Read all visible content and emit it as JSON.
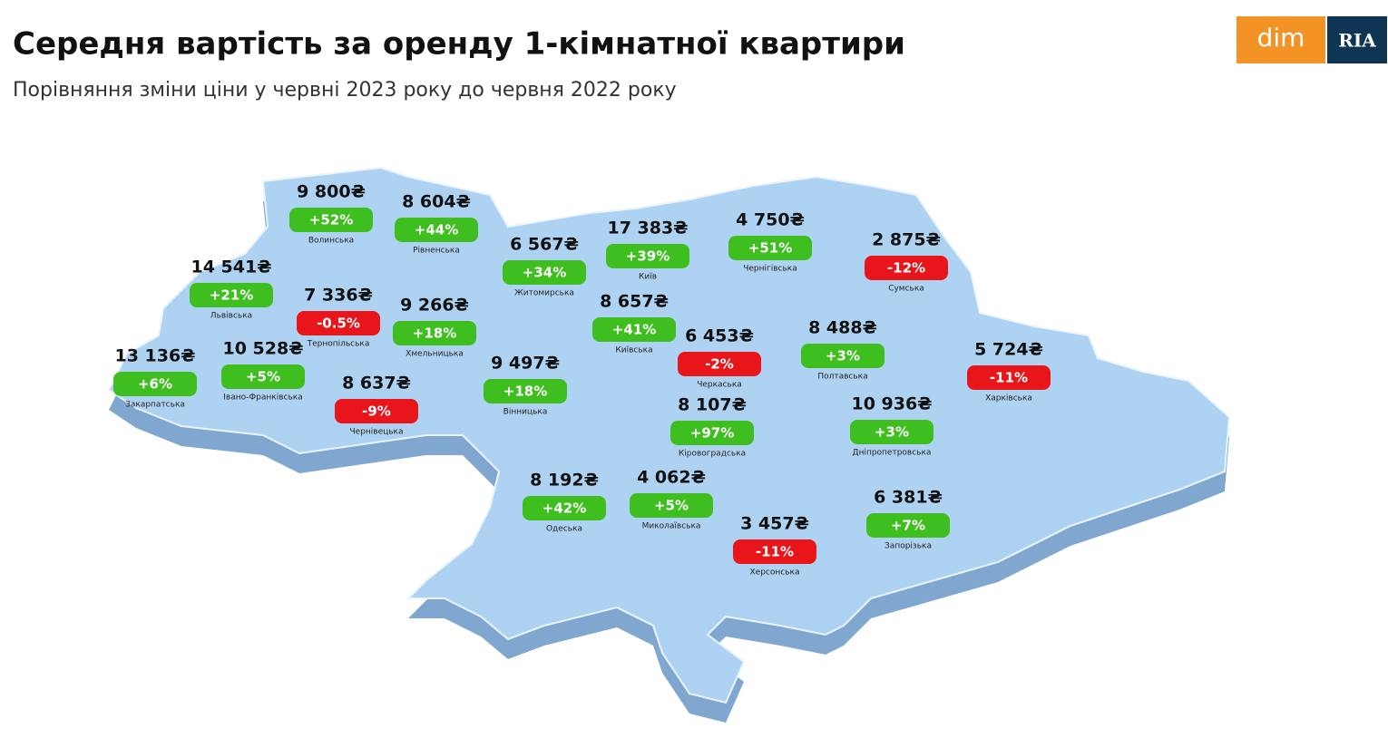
{
  "header": {
    "title": "Середня вартість за оренду 1-кімнатної квартири",
    "subtitle": "Порівняння зміни ціни у червні 2023 року до червня 2022 року"
  },
  "logo": {
    "left": "dim",
    "right": "RIA"
  },
  "regions": [
    {
      "name": "Волинська",
      "price": "9 800₴",
      "change": "+52%"
    },
    {
      "name": "Рівненська",
      "price": "8 604₴",
      "change": "+44%"
    },
    {
      "name": "Житомирська",
      "price": "6 567₴",
      "change": "+34%"
    },
    {
      "name": "Київ",
      "price": "17 383₴",
      "change": "+39%"
    },
    {
      "name": "Чернігівська",
      "price": "4 750₴",
      "change": "+51%"
    },
    {
      "name": "Сумська",
      "price": "2 875₴",
      "change": "-12%"
    },
    {
      "name": "Львівська",
      "price": "14 541₴",
      "change": "+21%"
    },
    {
      "name": "Тернопільська",
      "price": "7 336₴",
      "change": "-0.5%"
    },
    {
      "name": "Хмельницька",
      "price": "9 266₴",
      "change": "+18%"
    },
    {
      "name": "Київська",
      "price": "8 657₴",
      "change": "+41%"
    },
    {
      "name": "Черкаська",
      "price": "6 453₴",
      "change": "-2%"
    },
    {
      "name": "Полтавська",
      "price": "8 488₴",
      "change": "+3%"
    },
    {
      "name": "Харківська",
      "price": "5 724₴",
      "change": "-11%"
    },
    {
      "name": "Закарпатська",
      "price": "13 136₴",
      "change": "+6%"
    },
    {
      "name": "Івано-Франківська",
      "price": "10 528₴",
      "change": "+5%"
    },
    {
      "name": "Чернівецька",
      "price": "8 637₴",
      "change": "-9%"
    },
    {
      "name": "Вінницька",
      "price": "9 497₴",
      "change": "+18%"
    },
    {
      "name": "Кіровоградська",
      "price": "8 107₴",
      "change": "+97%"
    },
    {
      "name": "Дніпропетровська",
      "price": "10 936₴",
      "change": "+3%"
    },
    {
      "name": "Одеська",
      "price": "8 192₴",
      "change": "+42%"
    },
    {
      "name": "Миколаївська",
      "price": "4 062₴",
      "change": "+5%"
    },
    {
      "name": "Херсонська",
      "price": "3 457₴",
      "change": "-11%"
    },
    {
      "name": "Запорізька",
      "price": "6 381₴",
      "change": "+7%"
    }
  ]
}
